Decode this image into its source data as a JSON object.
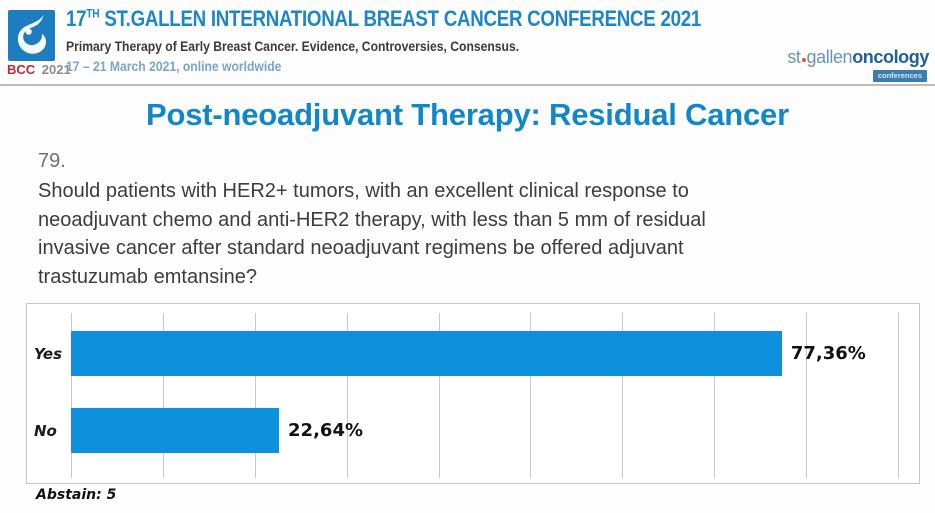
{
  "header": {
    "logo_bcc": "BCC",
    "logo_year": "2021",
    "title_num": "17",
    "title_sup": "TH",
    "title_rest": " ST.GALLEN INTERNATIONAL BREAST CANCER CONFERENCE 2021",
    "subtitle": "Primary Therapy of Early Breast Cancer. Evidence, Controversies, Consensus.",
    "dates": "17 – 21 March 2021, online worldwide",
    "sg_logo": {
      "st": "st",
      "gallen": "gallen",
      "oncology": "oncology",
      "badge": "conferences"
    }
  },
  "main": {
    "slide_title": "Post-neoadjuvant Therapy: Residual Cancer",
    "question_number": "79.",
    "question_lines": [
      "Should patients with HER2+ tumors, with an excellent clinical response to",
      "neoadjuvant chemo and anti-HER2 therapy, with less than 5 mm of residual",
      "invasive cancer after standard neoadjuvant regimens be offered adjuvant",
      "trastuzumab emtansine?"
    ],
    "abstain": "Abstain: 5"
  },
  "chart_data": {
    "type": "bar",
    "orientation": "horizontal",
    "title": "",
    "categories": [
      "Yes",
      "No"
    ],
    "values": [
      77.36,
      22.64
    ],
    "value_labels": [
      "77,36%",
      "22,64%"
    ],
    "xlim": [
      0,
      90
    ],
    "gridline_interval": 10,
    "grid": true,
    "legend": false,
    "bar_color": "#0e90dc"
  },
  "colors": {
    "accent_blue": "#1187cb",
    "bar_blue": "#0e90dc",
    "logo_blue": "#1e7dc1",
    "bcc_red": "#c4272e",
    "dates_blue": "#79a5c9"
  }
}
